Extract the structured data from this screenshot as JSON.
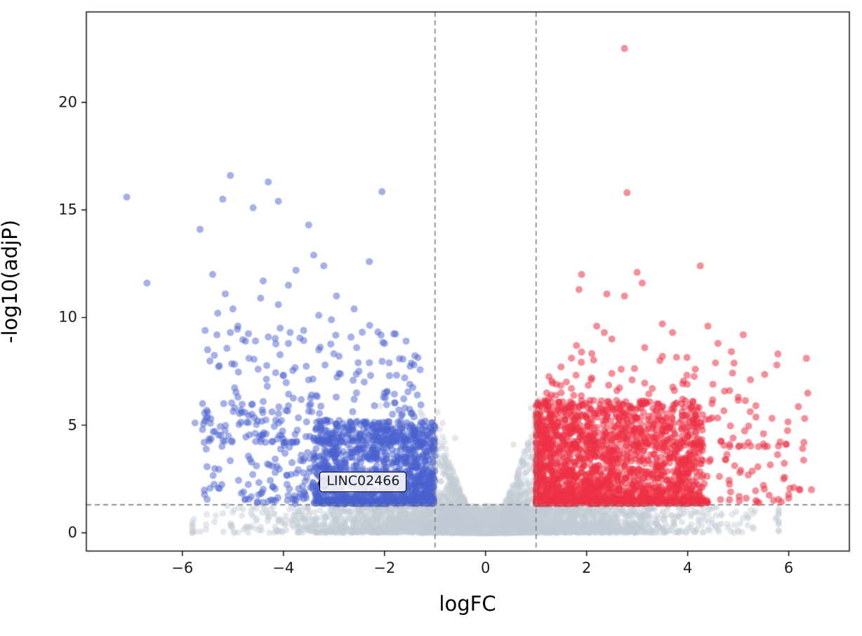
{
  "chart_data": {
    "type": "scatter",
    "subtype": "volcano-plot",
    "title": "",
    "xlabel": "logFC",
    "ylabel": "-log10(adjP)",
    "xlim": [
      -7.9,
      7.2
    ],
    "ylim": [
      -0.85,
      24.2
    ],
    "grid": false,
    "legend": null,
    "x_ticks": [
      -6,
      -4,
      -2,
      0,
      2,
      4,
      6
    ],
    "x_tick_labels": [
      "−6",
      "−4",
      "−2",
      "0",
      "2",
      "4",
      "6"
    ],
    "y_ticks": [
      0,
      5,
      10,
      15,
      20
    ],
    "y_tick_labels": [
      "0",
      "5",
      "10",
      "15",
      "20"
    ],
    "thresholds": {
      "logfc_negative": -1,
      "logfc_positive": 1,
      "significance_line": 1.3,
      "line_style": "dashed",
      "line_color": "#808080"
    },
    "annotation": {
      "label": "LINC02466",
      "x": -3.2,
      "y": 2.3
    },
    "colors": {
      "upregulated": "#ee3246",
      "downregulated": "#4962d0",
      "not_significant": "#c3ccd4",
      "alpha_up": 0.55,
      "alpha_down": 0.5,
      "alpha_ns": 0.45
    },
    "series": [
      {
        "name": "downregulated",
        "color": "#4962d0",
        "points": [
          [
            -7.1,
            15.6
          ],
          [
            -6.7,
            11.6
          ],
          [
            -5.05,
            16.6
          ],
          [
            -5.2,
            15.5
          ],
          [
            -4.6,
            15.1
          ],
          [
            -4.3,
            16.3
          ],
          [
            -4.1,
            15.4
          ],
          [
            -5.65,
            14.1
          ],
          [
            -5.4,
            12.0
          ],
          [
            -5.15,
            11.1
          ],
          [
            -5.0,
            10.4
          ],
          [
            -5.3,
            10.2
          ],
          [
            -4.9,
            9.6
          ],
          [
            -5.05,
            9.3
          ],
          [
            -4.4,
            11.7
          ],
          [
            -4.45,
            10.9
          ],
          [
            -4.1,
            10.6
          ],
          [
            -3.9,
            11.5
          ],
          [
            -3.75,
            12.2
          ],
          [
            -3.5,
            14.3
          ],
          [
            -3.4,
            12.9
          ],
          [
            -3.2,
            12.4
          ],
          [
            -2.95,
            11.0
          ],
          [
            -3.3,
            10.1
          ],
          [
            -3.05,
            9.9
          ],
          [
            -2.6,
            10.4
          ],
          [
            -2.05,
            15.85
          ],
          [
            -2.3,
            12.6
          ],
          [
            -5.55,
            9.4
          ],
          [
            -5.5,
            8.5
          ],
          [
            -4.75,
            8.9
          ],
          [
            -4.3,
            9.1
          ],
          [
            -3.9,
            8.8
          ],
          [
            -3.6,
            9.4
          ],
          [
            -3.3,
            8.5
          ],
          [
            -2.9,
            8.2
          ],
          [
            -2.55,
            8.6
          ],
          [
            -2.3,
            7.9
          ],
          [
            -4.5,
            7.6
          ],
          [
            -4.0,
            7.3
          ],
          [
            -3.5,
            7.1
          ],
          [
            -2.9,
            7.4
          ],
          [
            -2.4,
            7.0
          ],
          [
            -1.9,
            7.3
          ],
          [
            -1.6,
            7.2
          ],
          [
            -5.6,
            6.0
          ],
          [
            -5.5,
            5.6
          ],
          [
            -5.75,
            5.1
          ],
          [
            -5.6,
            4.8
          ],
          [
            -4.9,
            6.3
          ],
          [
            -4.4,
            6.1
          ],
          [
            -3.9,
            5.9
          ],
          [
            -2.0,
            6.5
          ],
          [
            -1.5,
            6.9
          ],
          [
            -1.35,
            6.4
          ],
          [
            -2.2,
            5.9
          ],
          [
            -2.6,
            6.2
          ]
        ]
      },
      {
        "name": "upregulated",
        "color": "#ee3246",
        "points": [
          [
            2.75,
            22.5
          ],
          [
            2.8,
            15.8
          ],
          [
            4.25,
            12.4
          ],
          [
            1.9,
            12.0
          ],
          [
            1.85,
            11.3
          ],
          [
            2.4,
            11.1
          ],
          [
            2.75,
            11.0
          ],
          [
            3.0,
            12.1
          ],
          [
            3.1,
            11.6
          ],
          [
            2.2,
            9.6
          ],
          [
            2.35,
            9.3
          ],
          [
            2.5,
            9.0
          ],
          [
            1.8,
            8.7
          ],
          [
            1.9,
            8.4
          ],
          [
            3.15,
            8.6
          ],
          [
            3.5,
            9.7
          ],
          [
            3.7,
            9.3
          ],
          [
            4.4,
            9.6
          ],
          [
            4.6,
            8.8
          ],
          [
            5.1,
            9.2
          ],
          [
            6.35,
            8.1
          ],
          [
            4.15,
            7.6
          ],
          [
            4.5,
            6.9
          ],
          [
            5.0,
            6.3
          ],
          [
            5.35,
            5.9
          ],
          [
            6.3,
            4.2
          ],
          [
            6.45,
            2.0
          ],
          [
            5.9,
            2.5
          ],
          [
            5.5,
            2.2
          ],
          [
            5.35,
            1.5
          ],
          [
            4.9,
            4.4
          ],
          [
            5.2,
            4.2
          ],
          [
            4.75,
            3.4
          ],
          [
            5.05,
            2.9
          ],
          [
            5.5,
            4.6
          ],
          [
            2.1,
            7.2
          ],
          [
            2.5,
            7.4
          ],
          [
            1.6,
            7.0
          ],
          [
            1.4,
            6.9
          ],
          [
            2.9,
            7.1
          ],
          [
            3.3,
            6.7
          ],
          [
            2.6,
            6.6
          ],
          [
            1.3,
            6.4
          ],
          [
            1.7,
            6.7
          ],
          [
            3.9,
            6.2
          ],
          [
            6.1,
            2.1
          ],
          [
            5.7,
            1.5
          ],
          [
            4.85,
            1.9
          ]
        ]
      },
      {
        "name": "not_significant",
        "color": "#c3ccd4",
        "points": [
          [
            -0.95,
            5.6
          ],
          [
            -0.85,
            5.1
          ],
          [
            0.9,
            5.8
          ],
          [
            1.05,
            6.2
          ],
          [
            -0.6,
            4.4
          ],
          [
            0.55,
            4.1
          ],
          [
            -2.1,
            5.9
          ],
          [
            4.8,
            1.4
          ],
          [
            5.3,
            0.9
          ],
          [
            5.8,
            1.0
          ],
          [
            -4.8,
            1.1
          ],
          [
            -5.2,
            0.9
          ]
        ]
      }
    ],
    "clouds": [
      {
        "series": "ns",
        "kind": "funnel",
        "n": 2300,
        "sigma": 0.55,
        "clip": 1.45,
        "y0": 0.15,
        "amp": 5.7,
        "xpow": 1.6,
        "ypow": 1.9
      },
      {
        "series": "ns",
        "kind": "base",
        "n": 2800,
        "sigma": 2.1,
        "clip": 5.8,
        "ymax": 1.25,
        "ypow": 1.6
      },
      {
        "series": "down",
        "kind": "block",
        "n": 1150,
        "x_from": -1.0,
        "x_span": -2.4,
        "x_pow": 1.25,
        "tail_frac": 0.18,
        "tail_span": -1.8,
        "y_base": 1.35,
        "y_span": 3.9,
        "y_pow": 1.6
      },
      {
        "series": "down",
        "kind": "block",
        "n": 230,
        "x_from": -1.2,
        "x_span": -4.4,
        "x_pow": 1.0,
        "y_base": 4.2,
        "y_span": 5.5,
        "y_pow": 2.4
      },
      {
        "series": "down",
        "kind": "block",
        "n": 150,
        "x_from": -1.0,
        "x_span": -2.3,
        "x_pow": 1.0,
        "y_base": 1.38,
        "y_span": 0.18,
        "y_pow": 1.0
      },
      {
        "series": "down",
        "kind": "block",
        "n": 70,
        "x_from": -3.4,
        "x_span": -2.2,
        "x_pow": 1.0,
        "y_base": 1.5,
        "y_span": 4.5,
        "y_pow": 1.6
      },
      {
        "series": "up",
        "kind": "block",
        "n": 1700,
        "x_from": 1.0,
        "x_span": 3.3,
        "x_pow": 1.35,
        "y_base": 1.35,
        "y_span": 4.8,
        "y_pow": 1.7
      },
      {
        "series": "up",
        "kind": "block",
        "n": 150,
        "x_from": 1.2,
        "x_span": 4.6,
        "x_pow": 1.6,
        "y_base": 4.0,
        "y_span": 4.5,
        "y_pow": 2.4
      },
      {
        "series": "up",
        "kind": "block",
        "n": 240,
        "x_from": 1.0,
        "x_span": 3.4,
        "x_pow": 1.0,
        "y_base": 1.38,
        "y_span": 0.18,
        "y_pow": 1.0
      },
      {
        "series": "up",
        "kind": "block",
        "n": 50,
        "x_from": 4.3,
        "x_span": 2.1,
        "x_pow": 1.0,
        "y_base": 1.4,
        "y_span": 5.2,
        "y_pow": 1.8
      }
    ]
  }
}
